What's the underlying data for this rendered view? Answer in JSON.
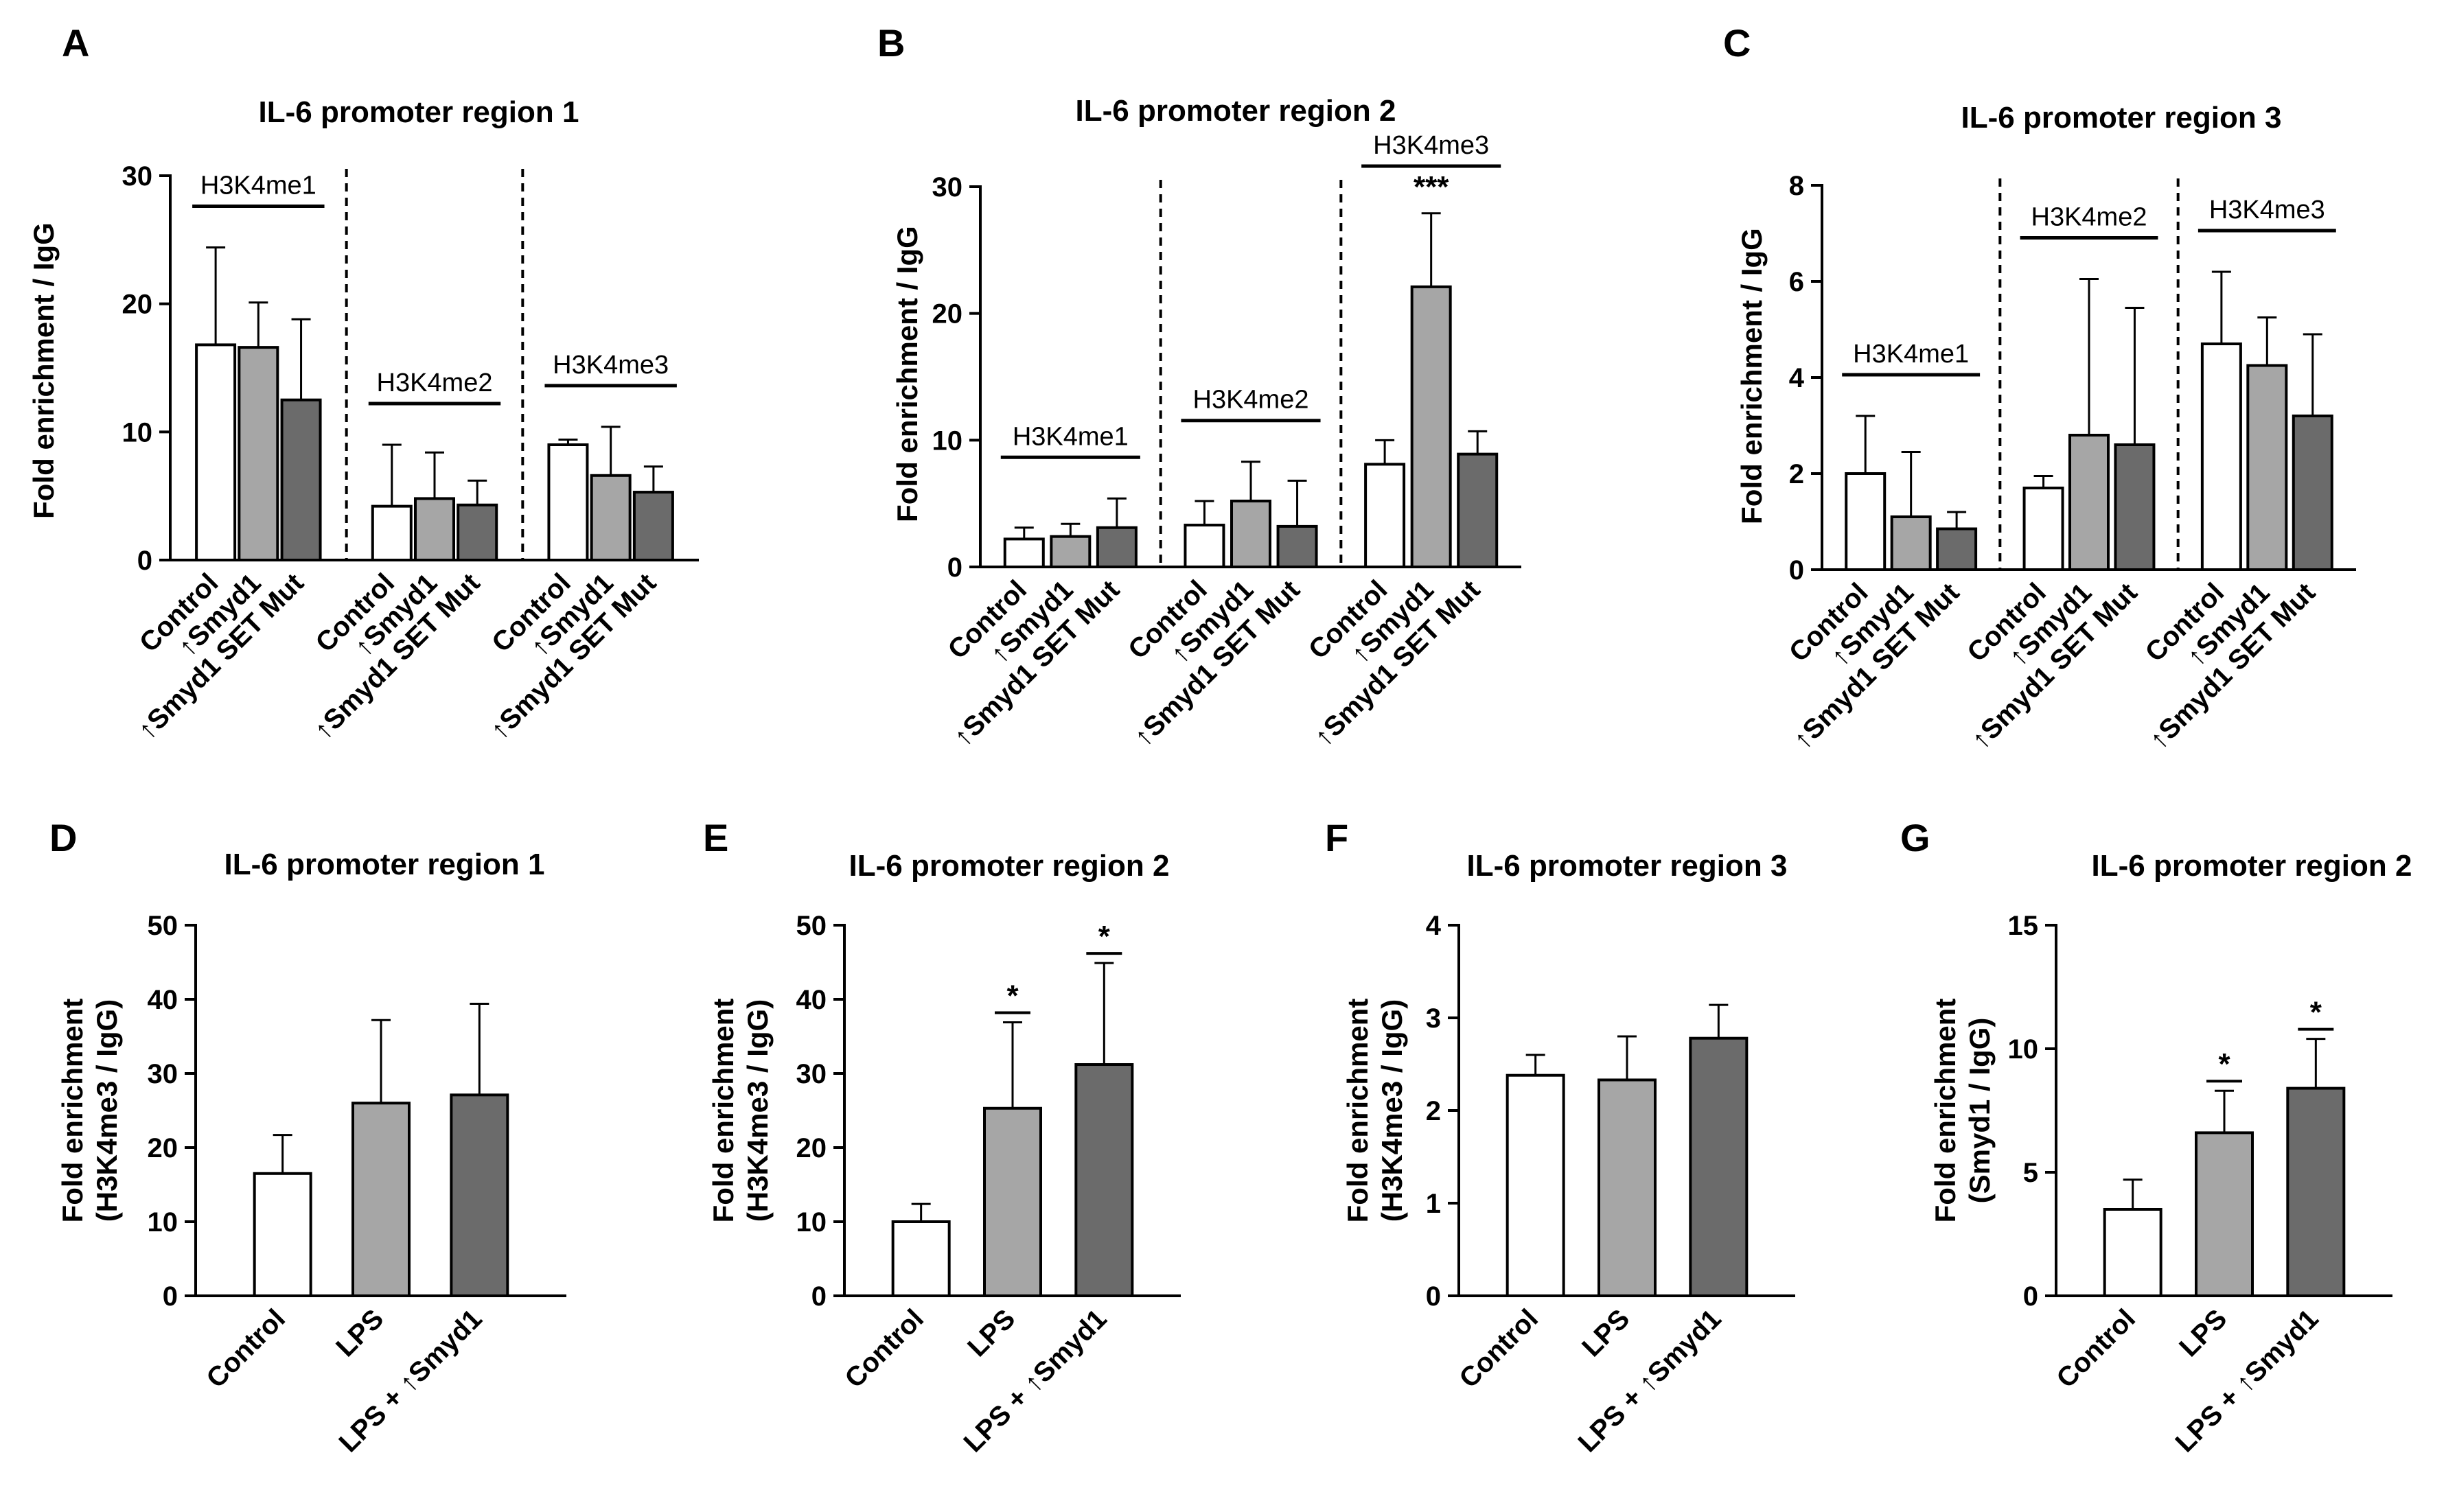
{
  "colors": {
    "control": "#ffffff",
    "smyd1": "#a6a6a6",
    "mut": "#6b6b6b",
    "stroke": "#000000"
  },
  "chart_data": [
    {
      "type": "bar",
      "panel_label": "A",
      "title": "IL-6 promoter region 1",
      "ylabel": "Fold enrichment / IgG",
      "ylim": [
        0,
        30
      ],
      "yticks": [
        0,
        10,
        20,
        30
      ],
      "groups": [
        {
          "label": "H3K4me1",
          "bars": [
            {
              "label": "Control",
              "value": 16.8,
              "error": 7.6,
              "color": "control"
            },
            {
              "label": "Smyd1",
              "arrow": true,
              "value": 16.6,
              "error": 3.5,
              "color": "smyd1"
            },
            {
              "label": "Smyd1 SET Mut",
              "arrow": true,
              "value": 12.5,
              "error": 6.3,
              "color": "mut"
            }
          ]
        },
        {
          "label": "H3K4me2",
          "bars": [
            {
              "label": "Control",
              "value": 4.2,
              "error": 4.8,
              "color": "control"
            },
            {
              "label": "Smyd1",
              "arrow": true,
              "value": 4.8,
              "error": 3.6,
              "color": "smyd1"
            },
            {
              "label": "Smyd1 SET Mut",
              "arrow": true,
              "value": 4.3,
              "error": 1.9,
              "color": "mut"
            }
          ]
        },
        {
          "label": "H3K4me3",
          "bars": [
            {
              "label": "Control",
              "value": 9.0,
              "error": 0.4,
              "color": "control"
            },
            {
              "label": "Smyd1",
              "arrow": true,
              "value": 6.6,
              "error": 3.8,
              "color": "smyd1"
            },
            {
              "label": "Smyd1 SET Mut",
              "arrow": true,
              "value": 5.3,
              "error": 2.0,
              "color": "mut"
            }
          ]
        }
      ]
    },
    {
      "type": "bar",
      "panel_label": "B",
      "title": "IL-6 promoter region 2",
      "ylabel": "Fold enrichment / IgG",
      "ylim": [
        0,
        30
      ],
      "yticks": [
        0,
        10,
        20,
        30
      ],
      "groups": [
        {
          "label": "H3K4me1",
          "bars": [
            {
              "label": "Control",
              "value": 2.2,
              "error": 0.9,
              "color": "control"
            },
            {
              "label": "Smyd1",
              "arrow": true,
              "value": 2.4,
              "error": 1.0,
              "color": "smyd1"
            },
            {
              "label": "Smyd1 SET Mut",
              "arrow": true,
              "value": 3.1,
              "error": 2.3,
              "color": "mut"
            }
          ]
        },
        {
          "label": "H3K4me2",
          "bars": [
            {
              "label": "Control",
              "value": 3.3,
              "error": 1.9,
              "color": "control"
            },
            {
              "label": "Smyd1",
              "arrow": true,
              "value": 5.2,
              "error": 3.1,
              "color": "smyd1"
            },
            {
              "label": "Smyd1 SET Mut",
              "arrow": true,
              "value": 3.2,
              "error": 3.6,
              "color": "mut"
            }
          ]
        },
        {
          "label": "H3K4me3",
          "bars": [
            {
              "label": "Control",
              "value": 8.1,
              "error": 1.9,
              "color": "control"
            },
            {
              "label": "Smyd1",
              "arrow": true,
              "value": 22.1,
              "error": 5.8,
              "color": "smyd1",
              "sig": "***"
            },
            {
              "label": "Smyd1 SET Mut",
              "arrow": true,
              "value": 8.9,
              "error": 1.8,
              "color": "mut"
            }
          ]
        }
      ]
    },
    {
      "type": "bar",
      "panel_label": "C",
      "title": "IL-6 promoter region 3",
      "ylabel": "Fold enrichment / IgG",
      "ylim": [
        0,
        8
      ],
      "yticks": [
        0,
        2,
        4,
        6,
        8
      ],
      "groups": [
        {
          "label": "H3K4me1",
          "bars": [
            {
              "label": "Control",
              "value": 2.0,
              "error": 1.2,
              "color": "control"
            },
            {
              "label": "Smyd1",
              "arrow": true,
              "value": 1.1,
              "error": 1.35,
              "color": "smyd1"
            },
            {
              "label": "Smyd1 SET Mut",
              "arrow": true,
              "value": 0.85,
              "error": 0.35,
              "color": "mut"
            }
          ]
        },
        {
          "label": "H3K4me2",
          "bars": [
            {
              "label": "Control",
              "value": 1.7,
              "error": 0.25,
              "color": "control"
            },
            {
              "label": "Smyd1",
              "arrow": true,
              "value": 2.8,
              "error": 3.25,
              "color": "smyd1"
            },
            {
              "label": "Smyd1 SET Mut",
              "arrow": true,
              "value": 2.6,
              "error": 2.85,
              "color": "mut"
            }
          ]
        },
        {
          "label": "H3K4me3",
          "bars": [
            {
              "label": "Control",
              "value": 4.7,
              "error": 1.5,
              "color": "control"
            },
            {
              "label": "Smyd1",
              "arrow": true,
              "value": 4.25,
              "error": 1.0,
              "color": "smyd1"
            },
            {
              "label": "Smyd1 SET Mut",
              "arrow": true,
              "value": 3.2,
              "error": 1.7,
              "color": "mut"
            }
          ]
        }
      ]
    },
    {
      "type": "bar",
      "panel_label": "D",
      "title": "IL-6 promoter region 1",
      "ylabel": "Fold enrichment",
      "ylabel2": "(H3K4me3 / IgG)",
      "ylim": [
        0,
        50
      ],
      "yticks": [
        0,
        10,
        20,
        30,
        40,
        50
      ],
      "groups": [
        {
          "label": "",
          "bars": [
            {
              "label": "Control",
              "value": 16.5,
              "error": 5.2,
              "color": "control"
            },
            {
              "label": "LPS",
              "value": 26.0,
              "error": 11.2,
              "color": "smyd1"
            },
            {
              "label": "LPS + ",
              "label_tail": "Smyd1",
              "arrow": true,
              "value": 27.1,
              "error": 12.3,
              "color": "mut"
            }
          ]
        }
      ]
    },
    {
      "type": "bar",
      "panel_label": "E",
      "title": "IL-6 promoter region 2",
      "ylabel": "Fold enrichment",
      "ylabel2": "(H3K4me3 / IgG)",
      "ylim": [
        0,
        50
      ],
      "yticks": [
        0,
        10,
        20,
        30,
        40,
        50
      ],
      "groups": [
        {
          "label": "",
          "bars": [
            {
              "label": "Control",
              "value": 10.0,
              "error": 2.4,
              "color": "control"
            },
            {
              "label": "LPS",
              "value": 25.3,
              "error": 11.6,
              "color": "smyd1",
              "sig": "*"
            },
            {
              "label": "LPS + ",
              "label_tail": "Smyd1",
              "arrow": true,
              "value": 31.2,
              "error": 13.7,
              "color": "mut",
              "sig": "*"
            }
          ]
        }
      ]
    },
    {
      "type": "bar",
      "panel_label": "F",
      "title": "IL-6 promoter region 3",
      "ylabel": "Fold enrichment",
      "ylabel2": "(H3K4me3 / IgG)",
      "ylim": [
        0,
        4
      ],
      "yticks": [
        0,
        1,
        2,
        3,
        4
      ],
      "groups": [
        {
          "label": "",
          "bars": [
            {
              "label": "Control",
              "value": 2.38,
              "error": 0.22,
              "color": "control"
            },
            {
              "label": "LPS",
              "value": 2.33,
              "error": 0.47,
              "color": "smyd1"
            },
            {
              "label": "LPS + ",
              "label_tail": "Smyd1",
              "arrow": true,
              "value": 2.78,
              "error": 0.36,
              "color": "mut"
            }
          ]
        }
      ]
    },
    {
      "type": "bar",
      "panel_label": "G",
      "title": "IL-6 promoter region 2",
      "ylabel": "Fold enrichment",
      "ylabel2": "(Smyd1 / IgG)",
      "ylim": [
        0,
        15
      ],
      "yticks": [
        0,
        5,
        10,
        15
      ],
      "groups": [
        {
          "label": "",
          "bars": [
            {
              "label": "Control",
              "value": 3.5,
              "error": 1.2,
              "color": "control"
            },
            {
              "label": "LPS",
              "value": 6.6,
              "error": 1.7,
              "color": "smyd1",
              "sig": "*"
            },
            {
              "label": "LPS + ",
              "label_tail": "Smyd1",
              "arrow": true,
              "value": 8.4,
              "error": 2.0,
              "color": "mut",
              "sig": "*"
            }
          ]
        }
      ]
    }
  ]
}
